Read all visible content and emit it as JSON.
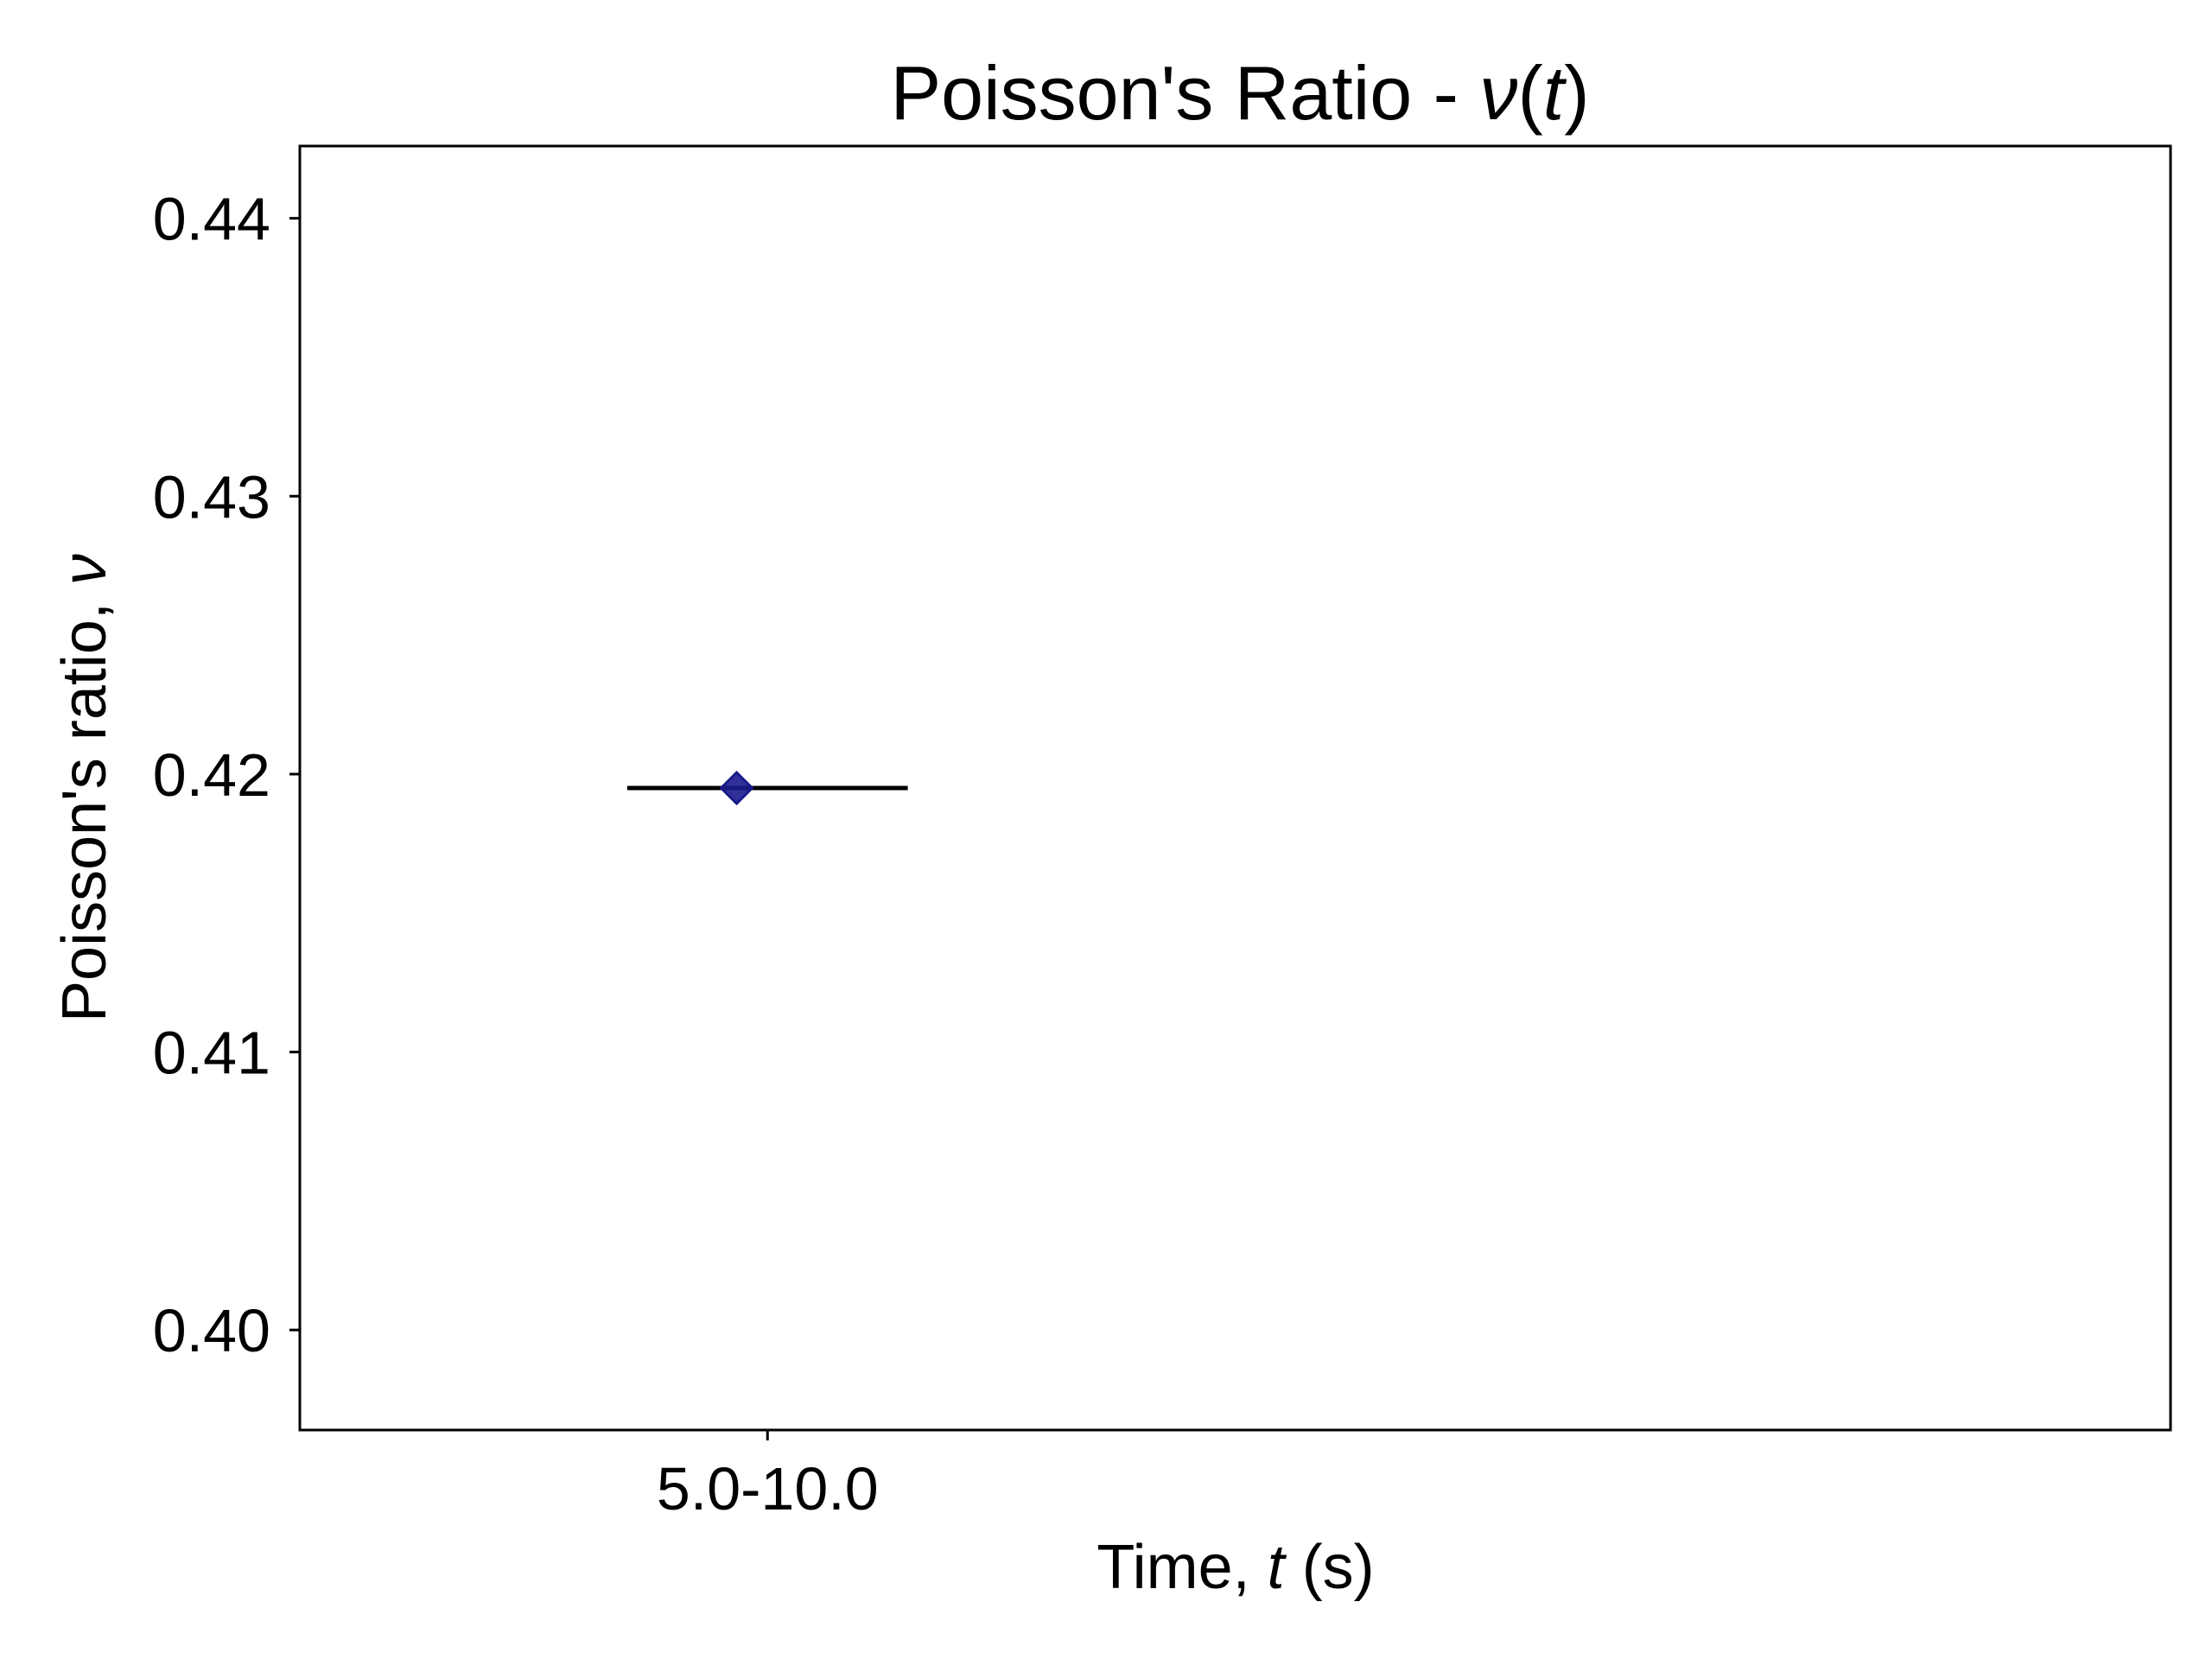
{
  "chart_data": {
    "type": "scatter",
    "title": "Poisson's Ratio - ",
    "title_math": [
      "ν",
      "(",
      "t",
      ")"
    ],
    "xlabel": "Time, ",
    "xlabel_math": "t",
    "xlabel_unit": " (s)",
    "ylabel": "Poisson's ratio, ",
    "ylabel_math": "ν",
    "categories": [
      "5.0-10.0"
    ],
    "y_ticks": [
      0.4,
      0.41,
      0.42,
      0.43,
      0.44
    ],
    "y_tick_labels": [
      "0.40",
      "0.41",
      "0.42",
      "0.43",
      "0.44"
    ],
    "ylim": [
      0.3964,
      0.4426
    ],
    "xlim": [
      -0.5,
      1.5
    ],
    "grid": false,
    "series": [
      {
        "points": [
          {
            "category": "5.0-10.0",
            "x": -0.033,
            "y": 0.4195
          }
        ],
        "marker": "diamond",
        "color": "#1a1a8c"
      }
    ],
    "range_bars": [
      {
        "x_from": -0.15,
        "x_to": 0.15,
        "y": 0.4195,
        "color": "#000000"
      }
    ]
  }
}
